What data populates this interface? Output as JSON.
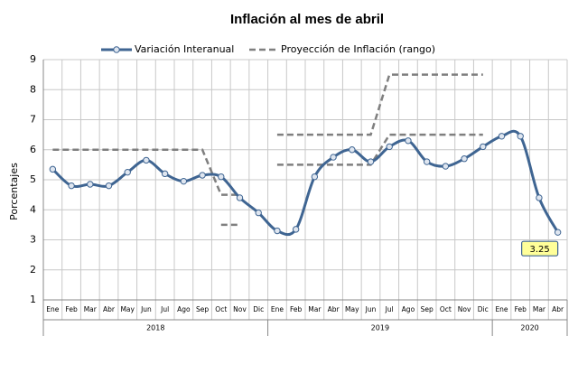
{
  "chart_data": {
    "type": "line",
    "title": "Inflación al mes de abril",
    "y_label": "Porcentajes",
    "categories": [
      "Ene",
      "Feb",
      "Mar",
      "Abr",
      "May",
      "Jun",
      "Jul",
      "Ago",
      "Sep",
      "Oct",
      "Nov",
      "Dic",
      "Ene",
      "Feb",
      "Mar",
      "Abr",
      "May",
      "Jun",
      "Jul",
      "Ago",
      "Sep",
      "Oct",
      "Nov",
      "Dic",
      "Ene",
      "Feb",
      "Mar",
      "Abr"
    ],
    "years": [
      "2018",
      "2019",
      "2020"
    ],
    "series": [
      {
        "name": "Variación Interanual",
        "color": "#3f6592",
        "values": [
          5.35,
          4.8,
          4.85,
          4.8,
          5.25,
          5.65,
          5.2,
          4.95,
          5.15,
          5.1,
          4.4,
          3.9,
          3.3,
          3.35,
          5.1,
          5.75,
          6.0,
          5.6,
          6.1,
          6.3,
          5.6,
          5.45,
          5.7,
          6.1,
          6.45,
          6.45,
          4.4,
          3.25
        ]
      },
      {
        "name": "Proyección de Inflación (rango)",
        "color": "#7f7f7f",
        "upper": [
          6,
          6,
          6,
          6,
          6,
          6,
          6,
          6,
          6,
          4.5,
          4.5,
          null,
          6.5,
          6.5,
          6.5,
          6.5,
          6.5,
          6.5,
          8.5,
          8.5,
          8.5,
          8.5,
          8.5,
          8.5,
          null,
          null,
          null,
          null
        ],
        "lower": [
          null,
          null,
          null,
          null,
          null,
          null,
          null,
          null,
          null,
          3.5,
          3.5,
          null,
          5.5,
          5.5,
          5.5,
          5.5,
          5.5,
          5.5,
          6.5,
          6.5,
          6.5,
          6.5,
          6.5,
          6.5,
          null,
          null,
          null,
          null
        ]
      }
    ],
    "ylim": [
      1,
      9
    ],
    "yticks": [
      1,
      2,
      3,
      4,
      5,
      6,
      7,
      8,
      9
    ],
    "grid": true,
    "legend": "top"
  }
}
